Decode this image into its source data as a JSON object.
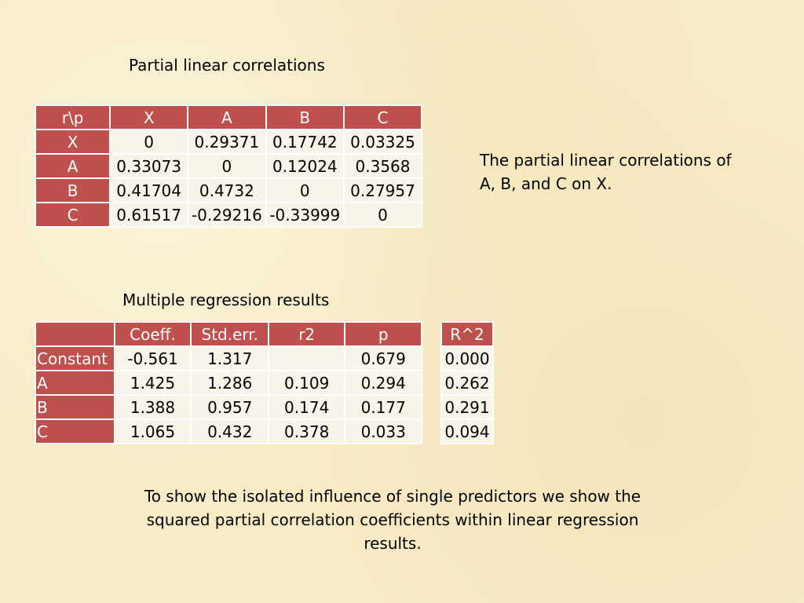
{
  "partial": {
    "title": "Partial linear correlations",
    "header": [
      "r\\p",
      "X",
      "A",
      "B",
      "C"
    ],
    "rows": [
      [
        "X",
        "0",
        "0.29371",
        "0.17742",
        "0.03325"
      ],
      [
        "A",
        "0.33073",
        "0",
        "0.12024",
        "0.3568"
      ],
      [
        "B",
        "0.41704",
        "0.4732",
        "0",
        "0.27957"
      ],
      [
        "C",
        "0.61517",
        "-0.29216",
        "-0.33999",
        "0"
      ]
    ],
    "note": "The partial linear correlations of A, B, and C on X."
  },
  "regression": {
    "title": "Multiple regression results",
    "header": [
      "",
      "Coeff.",
      "Std.err.",
      "r2",
      "p"
    ],
    "rows": [
      [
        "Constant",
        "-0.561",
        "1.317",
        "",
        "0.679"
      ],
      [
        "A",
        "1.425",
        "1.286",
        "0.109",
        "0.294"
      ],
      [
        "B",
        "1.388",
        "0.957",
        "0.174",
        "0.177"
      ],
      [
        "C",
        "1.065",
        "0.432",
        "0.378",
        "0.033"
      ]
    ],
    "r2_header": "R^2",
    "r2_values": [
      "0.000",
      "0.262",
      "0.291",
      "0.094"
    ]
  },
  "conclusion": "To show the isolated influence of single predictors we show the squared partial correlation coefficients within linear regression results."
}
